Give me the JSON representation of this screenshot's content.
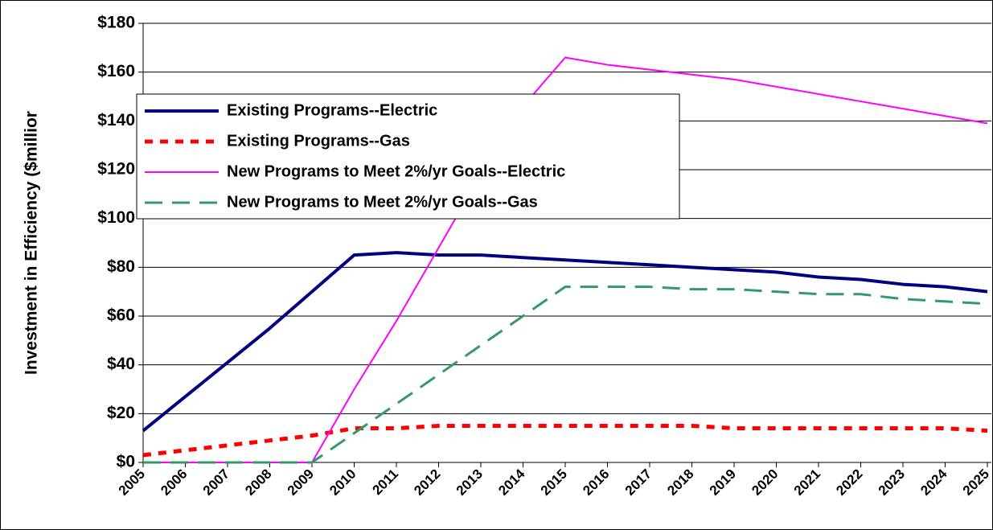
{
  "chart_data": {
    "type": "line",
    "y_label": "Investment in Efficiency ($millior",
    "categories": [
      "2005",
      "2006",
      "2007",
      "2008",
      "2009",
      "2010",
      "2011",
      "2012",
      "2013",
      "2014",
      "2015",
      "2016",
      "2017",
      "2018",
      "2019",
      "2020",
      "2021",
      "2022",
      "2023",
      "2024",
      "2025"
    ],
    "series": [
      {
        "name": "Existing Programs--Electric",
        "color": "#000080",
        "dash": "solid",
        "width": 4,
        "values": [
          13,
          27,
          41,
          55,
          70,
          85,
          86,
          85,
          85,
          84,
          83,
          82,
          81,
          80,
          79,
          78,
          76,
          75,
          73,
          72,
          70
        ]
      },
      {
        "name": "Existing Programs--Gas",
        "color": "#ff0000",
        "dash": "dotted",
        "width": 5,
        "values": [
          3,
          5,
          7,
          9,
          11,
          14,
          14,
          15,
          15,
          15,
          15,
          15,
          15,
          15,
          14,
          14,
          14,
          14,
          14,
          14,
          13
        ]
      },
      {
        "name": "New Programs to Meet 2%/yr Goals--Electric",
        "color": "#ff00ff",
        "dash": "solid",
        "width": 2,
        "values": [
          0,
          0,
          0,
          0,
          0,
          30,
          58,
          88,
          118,
          146,
          166,
          163,
          161,
          159,
          157,
          154,
          151,
          148,
          145,
          142,
          139
        ]
      },
      {
        "name": "New Programs to Meet 2%/yr Goals--Gas",
        "color": "#339966",
        "dash": "dashed",
        "width": 3,
        "values": [
          0,
          0,
          0,
          0,
          0,
          12,
          24,
          36,
          48,
          60,
          72,
          72,
          72,
          71,
          71,
          70,
          69,
          69,
          67,
          66,
          65
        ]
      }
    ],
    "ylim": [
      0,
      180
    ],
    "yticks": [
      {
        "value": 0,
        "label": "$0"
      },
      {
        "value": 20,
        "label": "$20"
      },
      {
        "value": 40,
        "label": "$40"
      },
      {
        "value": 60,
        "label": "$60"
      },
      {
        "value": 80,
        "label": "$80"
      },
      {
        "value": 100,
        "label": "$100"
      },
      {
        "value": 120,
        "label": "$120"
      },
      {
        "value": 140,
        "label": "$140"
      },
      {
        "value": 160,
        "label": "$160"
      },
      {
        "value": 180,
        "label": "$180"
      }
    ],
    "grid": true
  }
}
